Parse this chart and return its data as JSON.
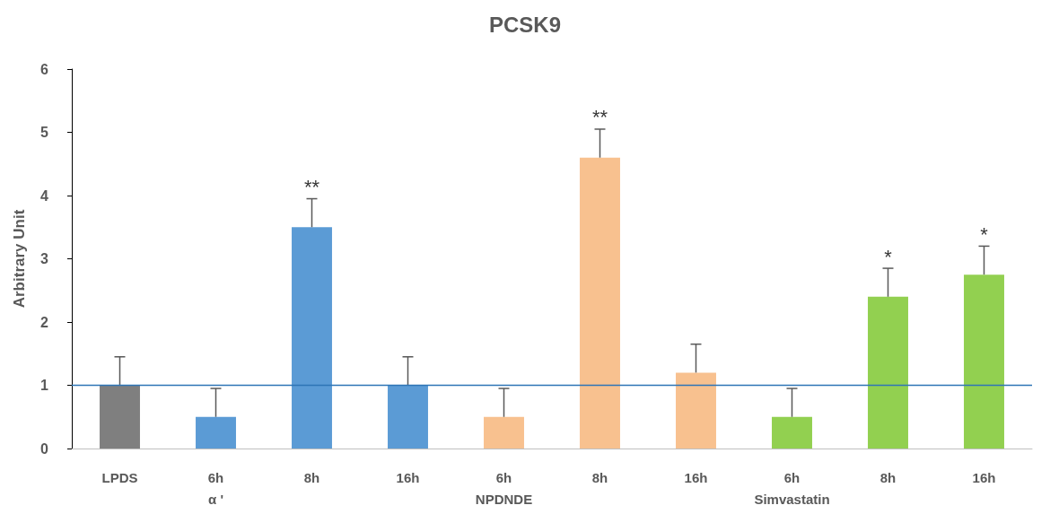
{
  "chart_data": {
    "type": "bar",
    "title": "PCSK9",
    "ylabel": "Arbitrary Unit",
    "categories": [
      "LPDS",
      "6h\nα '",
      "8h",
      "16h",
      "6h\nNPDNDE",
      "8h",
      "16h",
      "6h\nSimvastatin",
      "8h",
      "16h"
    ],
    "values": [
      1.0,
      0.5,
      3.5,
      1.0,
      0.5,
      4.6,
      1.2,
      0.5,
      2.4,
      2.75
    ],
    "colors": [
      "#7f7f7f",
      "#5b9bd5",
      "#5b9bd5",
      "#5b9bd5",
      "#f8c18f",
      "#f8c18f",
      "#f8c18f",
      "#92d050",
      "#92d050",
      "#92d050"
    ],
    "errors": [
      [
        1.0,
        1.45
      ],
      [
        0.5,
        0.95
      ],
      [
        3.5,
        3.95
      ],
      [
        1.0,
        1.45
      ],
      [
        0.5,
        0.95
      ],
      [
        4.6,
        5.05
      ],
      [
        1.2,
        1.65
      ],
      [
        0.5,
        0.95
      ],
      [
        2.4,
        2.85
      ],
      [
        2.75,
        3.2
      ]
    ],
    "ylim": [
      0,
      6
    ],
    "yticks": [
      0,
      1,
      2,
      3,
      4,
      5,
      6
    ],
    "grid": false,
    "ref_lines": [
      {
        "axis": "y",
        "value": 1,
        "label": null,
        "color": "#2e75b6"
      }
    ],
    "value_labels": [
      null,
      null,
      "**",
      null,
      null,
      "**",
      null,
      null,
      "*",
      "*"
    ]
  }
}
